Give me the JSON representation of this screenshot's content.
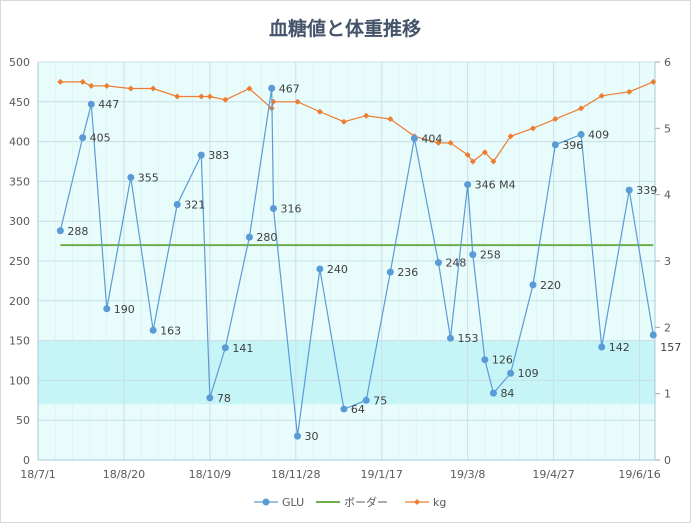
{
  "chart_data": {
    "type": "line",
    "title": "血糖値と体重推移",
    "x_type": "date",
    "x_range": [
      "2018-07-01",
      "2019-06-25"
    ],
    "x_ticks": [
      {
        "date": "2018-07-01",
        "label": "18/7/1"
      },
      {
        "date": "2018-08-20",
        "label": "18/8/20"
      },
      {
        "date": "2018-10-09",
        "label": "18/10/9"
      },
      {
        "date": "2018-11-28",
        "label": "18/11/28"
      },
      {
        "date": "2019-01-17",
        "label": "19/1/17"
      },
      {
        "date": "2019-03-08",
        "label": "19/3/8"
      },
      {
        "date": "2019-04-27",
        "label": "19/4/27"
      },
      {
        "date": "2019-06-16",
        "label": "19/6/16"
      }
    ],
    "y_left": {
      "min": 0,
      "max": 500,
      "step": 50,
      "labels": [
        "0",
        "50",
        "100",
        "150",
        "200",
        "250",
        "300",
        "350",
        "400",
        "450",
        "500"
      ]
    },
    "y_right": {
      "min": 0,
      "max": 6,
      "step": 1,
      "labels": [
        "0",
        "1",
        "2",
        "3",
        "4",
        "5",
        "6"
      ]
    },
    "target_band": {
      "from": 70,
      "to": 150,
      "color": "#c6f5f8"
    },
    "plot_bg": "#e8fcfc",
    "grid": true,
    "legend_position": "bottom",
    "x": [
      "2018-07-14",
      "2018-07-27",
      "2018-08-01",
      "2018-08-10",
      "2018-08-24",
      "2018-09-06",
      "2018-09-20",
      "2018-10-04",
      "2018-10-09",
      "2018-10-18",
      "2018-11-01",
      "2018-11-14",
      "2018-11-15",
      "2018-11-29",
      "2018-12-12",
      "2018-12-26",
      "2019-01-08",
      "2019-01-22",
      "2019-02-05",
      "2019-02-19",
      "2019-02-26",
      "2019-03-08",
      "2019-03-11",
      "2019-03-18",
      "2019-03-23",
      "2019-04-02",
      "2019-04-15",
      "2019-04-28",
      "2019-05-13",
      "2019-05-25",
      "2019-06-10",
      "2019-06-24"
    ],
    "series": [
      {
        "name": "GLU",
        "axis": "left",
        "color": "#5b9bd5",
        "marker": "circle",
        "values": [
          288,
          405,
          447,
          190,
          355,
          163,
          321,
          383,
          78,
          141,
          280,
          467,
          316,
          30,
          240,
          64,
          75,
          236,
          404,
          248,
          153,
          346,
          258,
          126,
          84,
          109,
          220,
          396,
          409,
          142,
          339,
          157
        ],
        "data_labels": [
          "288",
          "405",
          "447",
          "190",
          "355",
          "163",
          "321",
          "383",
          "78",
          "141",
          "280",
          "467",
          "316",
          "30",
          "240",
          "64",
          "75",
          "236",
          "404",
          "248",
          "153",
          "346 M4",
          "258",
          "126",
          "84",
          "109",
          "220",
          "396",
          "409",
          "142",
          "339",
          "157"
        ],
        "highlight_label_index": 21,
        "highlight_color": "#c00000"
      },
      {
        "name": "ボーダー",
        "axis": "left",
        "color": "#70ad47",
        "marker": "none",
        "constant": 270
      },
      {
        "name": "kg",
        "axis": "right",
        "color": "#ed7d31",
        "marker": "diamond",
        "values": [
          5.7,
          5.7,
          5.64,
          5.64,
          5.6,
          5.6,
          5.48,
          5.48,
          5.48,
          5.43,
          5.6,
          5.3,
          5.4,
          5.4,
          5.25,
          5.1,
          5.19,
          5.14,
          4.88,
          4.78,
          4.78,
          4.6,
          4.5,
          4.64,
          4.5,
          4.88,
          5.0,
          5.14,
          5.3,
          5.49,
          5.55,
          5.7
        ]
      }
    ]
  }
}
